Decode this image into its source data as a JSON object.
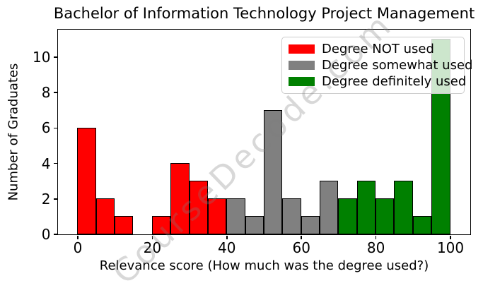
{
  "figure": {
    "watermark": "CourseDecode.com"
  },
  "chart_data": {
    "type": "bar",
    "subtype": "histogram",
    "title": "Bachelor of Information Technology Project Management",
    "xlabel": "Relevance score (How much was the degree used?)",
    "ylabel": "Number of Graduates",
    "xlim": [
      -5.3,
      105.3
    ],
    "ylim": [
      0,
      11.55
    ],
    "xticks": [
      0,
      20,
      40,
      60,
      80,
      100
    ],
    "yticks": [
      0,
      2,
      4,
      6,
      8,
      10
    ],
    "grid": false,
    "bin_width": 5,
    "bar_edge_color": "#000000",
    "groups": [
      {
        "label": "Degree NOT used",
        "color": "#ff0000"
      },
      {
        "label": "Degree somewhat used",
        "color": "#808080"
      },
      {
        "label": "Degree definitely used",
        "color": "#008000"
      }
    ],
    "legend_position": "upper right",
    "bins": [
      {
        "start": 0,
        "end": 5,
        "count": 6,
        "group": 0
      },
      {
        "start": 5,
        "end": 10,
        "count": 2,
        "group": 0
      },
      {
        "start": 10,
        "end": 15,
        "count": 1,
        "group": 0
      },
      {
        "start": 15,
        "end": 20,
        "count": 0,
        "group": 0
      },
      {
        "start": 20,
        "end": 25,
        "count": 1,
        "group": 0
      },
      {
        "start": 25,
        "end": 30,
        "count": 4,
        "group": 0
      },
      {
        "start": 30,
        "end": 35,
        "count": 3,
        "group": 0
      },
      {
        "start": 35,
        "end": 40,
        "count": 2,
        "group": 0
      },
      {
        "start": 40,
        "end": 45,
        "count": 2,
        "group": 1
      },
      {
        "start": 45,
        "end": 50,
        "count": 1,
        "group": 1
      },
      {
        "start": 50,
        "end": 55,
        "count": 7,
        "group": 1
      },
      {
        "start": 55,
        "end": 60,
        "count": 2,
        "group": 1
      },
      {
        "start": 60,
        "end": 65,
        "count": 1,
        "group": 1
      },
      {
        "start": 65,
        "end": 70,
        "count": 3,
        "group": 1
      },
      {
        "start": 70,
        "end": 75,
        "count": 2,
        "group": 2
      },
      {
        "start": 75,
        "end": 80,
        "count": 3,
        "group": 2
      },
      {
        "start": 80,
        "end": 85,
        "count": 2,
        "group": 2
      },
      {
        "start": 85,
        "end": 90,
        "count": 3,
        "group": 2
      },
      {
        "start": 90,
        "end": 95,
        "count": 1,
        "group": 2
      },
      {
        "start": 95,
        "end": 100,
        "count": 11,
        "group": 2
      }
    ]
  }
}
